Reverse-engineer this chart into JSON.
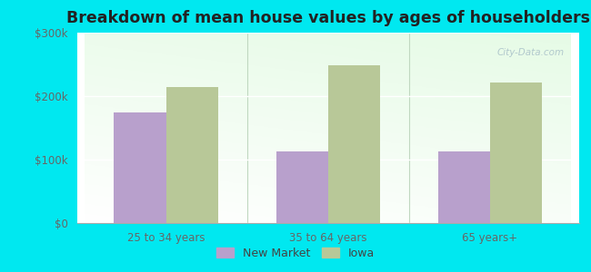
{
  "title": "Breakdown of mean house values by ages of householders",
  "categories": [
    "25 to 34 years",
    "35 to 64 years",
    "65 years+"
  ],
  "new_market_values": [
    175000,
    113000,
    113000
  ],
  "iowa_values": [
    215000,
    248000,
    222000
  ],
  "new_market_color": "#b8a0cc",
  "iowa_color": "#b8c898",
  "background_outer": "#00e8f0",
  "ylim": [
    0,
    300000
  ],
  "yticks": [
    0,
    100000,
    200000,
    300000
  ],
  "ytick_labels": [
    "$0",
    "$100k",
    "$200k",
    "$300k"
  ],
  "bar_width": 0.32,
  "legend_labels": [
    "New Market",
    "Iowa"
  ],
  "title_fontsize": 12.5,
  "tick_fontsize": 8.5,
  "legend_fontsize": 9
}
